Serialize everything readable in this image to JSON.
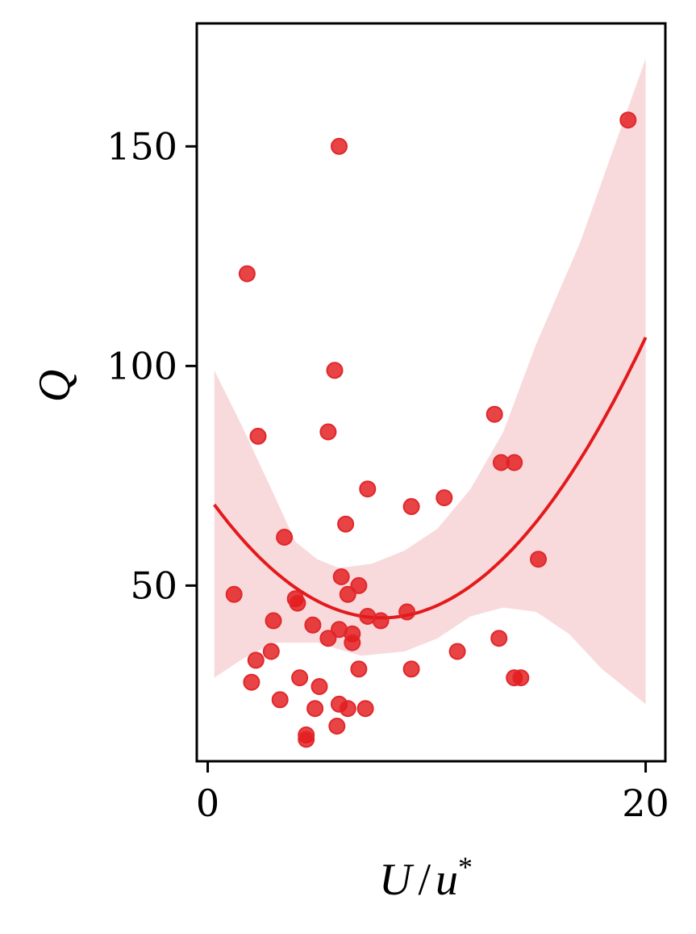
{
  "chart_data": {
    "type": "scatter",
    "xlabel_main": "U",
    "xlabel_sep": "/",
    "xlabel_var": "u",
    "xlabel_sup": "*",
    "ylabel": "Q",
    "xlim": [
      -0.5,
      20.9
    ],
    "ylim": [
      10,
      178
    ],
    "x_ticks": [
      0,
      20
    ],
    "x_tick_labels": [
      "0",
      "20"
    ],
    "y_ticks": [
      50,
      100,
      150
    ],
    "y_tick_labels": [
      "50",
      "100",
      "150"
    ],
    "grid": false,
    "colors": {
      "points": "#e31a1c",
      "fit": "#e31a1c",
      "band": "#f9dadc"
    },
    "points": [
      {
        "x": 1.2,
        "y": 48
      },
      {
        "x": 1.8,
        "y": 121
      },
      {
        "x": 2.3,
        "y": 84
      },
      {
        "x": 2.2,
        "y": 33
      },
      {
        "x": 2.0,
        "y": 28
      },
      {
        "x": 3.0,
        "y": 42
      },
      {
        "x": 2.9,
        "y": 35
      },
      {
        "x": 3.5,
        "y": 61
      },
      {
        "x": 4.0,
        "y": 47
      },
      {
        "x": 4.1,
        "y": 46
      },
      {
        "x": 3.3,
        "y": 24
      },
      {
        "x": 4.2,
        "y": 29
      },
      {
        "x": 4.5,
        "y": 16
      },
      {
        "x": 4.5,
        "y": 15
      },
      {
        "x": 4.8,
        "y": 41
      },
      {
        "x": 4.9,
        "y": 22
      },
      {
        "x": 5.1,
        "y": 27
      },
      {
        "x": 5.5,
        "y": 38
      },
      {
        "x": 5.5,
        "y": 85
      },
      {
        "x": 5.8,
        "y": 99
      },
      {
        "x": 6.0,
        "y": 150
      },
      {
        "x": 6.0,
        "y": 40
      },
      {
        "x": 6.0,
        "y": 23
      },
      {
        "x": 5.9,
        "y": 18
      },
      {
        "x": 6.1,
        "y": 52
      },
      {
        "x": 6.3,
        "y": 64
      },
      {
        "x": 6.4,
        "y": 48
      },
      {
        "x": 6.4,
        "y": 22
      },
      {
        "x": 6.6,
        "y": 39
      },
      {
        "x": 6.6,
        "y": 37
      },
      {
        "x": 6.9,
        "y": 31
      },
      {
        "x": 6.9,
        "y": 50
      },
      {
        "x": 7.2,
        "y": 22
      },
      {
        "x": 7.3,
        "y": 72
      },
      {
        "x": 7.3,
        "y": 43
      },
      {
        "x": 7.9,
        "y": 42
      },
      {
        "x": 9.1,
        "y": 44
      },
      {
        "x": 9.3,
        "y": 68
      },
      {
        "x": 9.3,
        "y": 31
      },
      {
        "x": 10.8,
        "y": 70
      },
      {
        "x": 11.4,
        "y": 35
      },
      {
        "x": 13.1,
        "y": 89
      },
      {
        "x": 13.3,
        "y": 38
      },
      {
        "x": 13.4,
        "y": 78
      },
      {
        "x": 14.0,
        "y": 78
      },
      {
        "x": 14.0,
        "y": 29
      },
      {
        "x": 14.3,
        "y": 29
      },
      {
        "x": 15.1,
        "y": 56
      },
      {
        "x": 19.2,
        "y": 156
      }
    ],
    "fit_coefficients": [
      70.5,
      -7.0,
      0.44
    ],
    "fit_x_range": [
      0.3,
      20.0
    ],
    "band_upper": [
      {
        "x": 0.3,
        "y": 99
      },
      {
        "x": 1.5,
        "y": 87
      },
      {
        "x": 3.0,
        "y": 71
      },
      {
        "x": 4.0,
        "y": 60
      },
      {
        "x": 5.0,
        "y": 56
      },
      {
        "x": 6.0,
        "y": 54
      },
      {
        "x": 7.5,
        "y": 55
      },
      {
        "x": 9.0,
        "y": 58
      },
      {
        "x": 10.5,
        "y": 63
      },
      {
        "x": 12.0,
        "y": 72
      },
      {
        "x": 13.5,
        "y": 85
      },
      {
        "x": 15.0,
        "y": 105
      },
      {
        "x": 17.0,
        "y": 128
      },
      {
        "x": 20.0,
        "y": 170
      }
    ],
    "band_lower": [
      {
        "x": 0.3,
        "y": 29
      },
      {
        "x": 1.5,
        "y": 33
      },
      {
        "x": 3.0,
        "y": 37
      },
      {
        "x": 5.0,
        "y": 37
      },
      {
        "x": 7.0,
        "y": 34
      },
      {
        "x": 9.0,
        "y": 35
      },
      {
        "x": 10.5,
        "y": 38
      },
      {
        "x": 12.0,
        "y": 43
      },
      {
        "x": 13.5,
        "y": 45
      },
      {
        "x": 15.0,
        "y": 44
      },
      {
        "x": 16.5,
        "y": 39
      },
      {
        "x": 18.0,
        "y": 31
      },
      {
        "x": 20.0,
        "y": 23
      }
    ]
  }
}
